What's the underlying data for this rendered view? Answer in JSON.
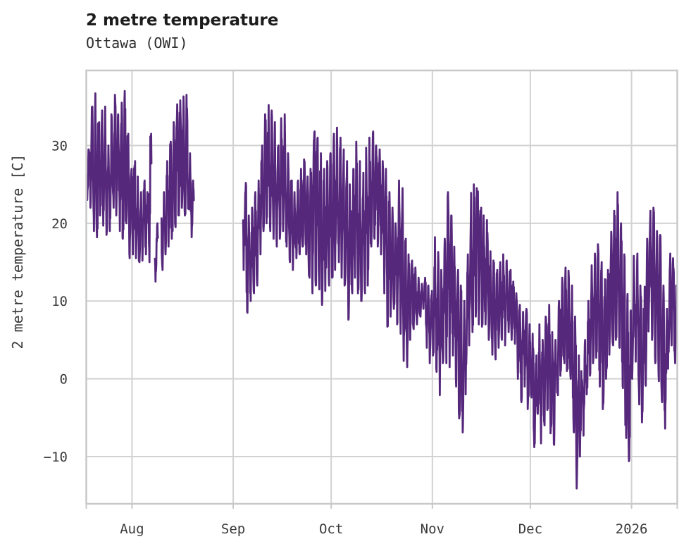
{
  "page": {
    "title": "2 metre temperature",
    "subtitle": "Ottawa (OWI)"
  },
  "chart_data": {
    "type": "line",
    "title": "2 metre temperature",
    "subtitle": "Ottawa (OWI)",
    "xlabel": "",
    "ylabel": "2 metre temperature [C]",
    "grid": true,
    "legend": false,
    "background": "#ffffff",
    "grid_color": "#d2d2d2",
    "border_color": "#c8c8c8",
    "line_color": "#56287c",
    "y_ticks": [
      30,
      20,
      10,
      0,
      -10
    ],
    "y_tick_labels": [
      "30",
      "20",
      "10",
      "0",
      "−10"
    ],
    "ylim": [
      -16.1,
      39.7
    ],
    "x_tick_labels": [
      "Aug",
      "Sep",
      "Oct",
      "Nov",
      "Dec",
      "2026"
    ],
    "x_tick_positions_days": [
      14,
      45,
      75,
      106,
      136,
      167
    ],
    "xlim_days": [
      0,
      181
    ],
    "x_unit": "days from chart start (mid-July) to mid-January 2026",
    "series": [
      {
        "name": "2 metre temperature",
        "unit": "C",
        "sampling": "sub-daily trace; values below are per-day [dayIndex, min, max] read from the plot; missing days are data gaps",
        "daily_min_max": [
          [
            0,
            23,
            29.5
          ],
          [
            1,
            22,
            35
          ],
          [
            2,
            19,
            36.7
          ],
          [
            3,
            18.2,
            33
          ],
          [
            4,
            21,
            34.5
          ],
          [
            5,
            19.7,
            35
          ],
          [
            6,
            18.5,
            30
          ],
          [
            7,
            19,
            34
          ],
          [
            8,
            22,
            36.5
          ],
          [
            9,
            21,
            34
          ],
          [
            10,
            19,
            35.5
          ],
          [
            11,
            18,
            37
          ],
          [
            12,
            20,
            31.5
          ],
          [
            13,
            15.5,
            27
          ],
          [
            14,
            16,
            28
          ],
          [
            15,
            15.5,
            26
          ],
          [
            16,
            15,
            24
          ],
          [
            17,
            15.2,
            25.5
          ],
          [
            18,
            16,
            24
          ],
          [
            19,
            15,
            31.5
          ],
          [
            21,
            12.5,
            20
          ],
          [
            23,
            14,
            24
          ],
          [
            24,
            16,
            28
          ],
          [
            25,
            17,
            30.5
          ],
          [
            26,
            18,
            33
          ],
          [
            27,
            19.5,
            35.3
          ],
          [
            28,
            21,
            35.8
          ],
          [
            29,
            22,
            36.3
          ],
          [
            30,
            21,
            36.5
          ],
          [
            31,
            21.8,
            29
          ],
          [
            32,
            18.2,
            25.5
          ],
          [
            48,
            14,
            25.2
          ],
          [
            49,
            8.5,
            21
          ],
          [
            50,
            10,
            22
          ],
          [
            51,
            11,
            24
          ],
          [
            52,
            12,
            25.5
          ],
          [
            53,
            16,
            30
          ],
          [
            54,
            19,
            34
          ],
          [
            55,
            20,
            35.2
          ],
          [
            56,
            19,
            34.5
          ],
          [
            57,
            18,
            33
          ],
          [
            58,
            17,
            30
          ],
          [
            59,
            18,
            33.5
          ],
          [
            60,
            19,
            34
          ],
          [
            61,
            17,
            29
          ],
          [
            62,
            15,
            25.5
          ],
          [
            63,
            14,
            24
          ],
          [
            64,
            15.5,
            25.5
          ],
          [
            65,
            16,
            27
          ],
          [
            66,
            17,
            28.2
          ],
          [
            67,
            16,
            26
          ],
          [
            68,
            13,
            27
          ],
          [
            69,
            11,
            31.8
          ],
          [
            70,
            12,
            31
          ],
          [
            71,
            11.5,
            29
          ],
          [
            72,
            9.5,
            27
          ],
          [
            73,
            11.3,
            28
          ],
          [
            74,
            12,
            29
          ],
          [
            75,
            13,
            31.5
          ],
          [
            76,
            14,
            32.3
          ],
          [
            77,
            15,
            31
          ],
          [
            78,
            13,
            29.5
          ],
          [
            79,
            12,
            28
          ],
          [
            80,
            7.6,
            25
          ],
          [
            81,
            11,
            27
          ],
          [
            82,
            13,
            30.5
          ],
          [
            83,
            11,
            28
          ],
          [
            84,
            10,
            26.5
          ],
          [
            85,
            11,
            29.7
          ],
          [
            86,
            12,
            31
          ],
          [
            87,
            17,
            31.8
          ],
          [
            88,
            18,
            30
          ],
          [
            89,
            17,
            29.5
          ],
          [
            90,
            16,
            28
          ],
          [
            91,
            11,
            27
          ],
          [
            92,
            6.7,
            24
          ],
          [
            93,
            8,
            22
          ],
          [
            94,
            9,
            20
          ],
          [
            95,
            7,
            25.5
          ],
          [
            96,
            5.8,
            24.5
          ],
          [
            97,
            2.3,
            18
          ],
          [
            98,
            1.5,
            16
          ],
          [
            99,
            5,
            15.2
          ],
          [
            100,
            6.4,
            14.3
          ],
          [
            101,
            7,
            13
          ],
          [
            102,
            8,
            12.2
          ],
          [
            103,
            9,
            13
          ],
          [
            104,
            4,
            12
          ],
          [
            105,
            2,
            11.3
          ],
          [
            106,
            3,
            18.2
          ],
          [
            107,
            0.9,
            16.3
          ],
          [
            108,
            -2.1,
            14
          ],
          [
            109,
            2,
            18
          ],
          [
            110,
            2,
            24
          ],
          [
            111,
            1.5,
            21
          ],
          [
            112,
            3,
            17
          ],
          [
            113,
            -1,
            14
          ],
          [
            114,
            -5.1,
            12
          ],
          [
            115,
            -6.9,
            10
          ],
          [
            116,
            -2,
            16
          ],
          [
            117,
            4.3,
            23.9
          ],
          [
            118,
            6,
            25
          ],
          [
            119,
            8,
            24.5
          ],
          [
            120,
            7,
            22
          ],
          [
            121,
            6.7,
            21
          ],
          [
            122,
            7,
            20.4
          ],
          [
            123,
            5,
            16.4
          ],
          [
            124,
            3.1,
            15.2
          ],
          [
            125,
            2.5,
            14
          ],
          [
            126,
            4,
            15
          ],
          [
            127,
            5,
            16
          ],
          [
            128,
            4.3,
            15.2
          ],
          [
            129,
            6,
            14
          ],
          [
            130,
            5,
            12.5
          ],
          [
            131,
            4.5,
            11
          ],
          [
            132,
            0,
            9.5
          ],
          [
            133,
            -3,
            8.6
          ],
          [
            134,
            -1,
            9
          ],
          [
            135,
            -3.9,
            7
          ],
          [
            136,
            -2.4,
            5.8
          ],
          [
            137,
            -8.8,
            3
          ],
          [
            138,
            -4.5,
            7
          ],
          [
            139,
            -8.3,
            5
          ],
          [
            140,
            -6,
            8
          ],
          [
            141,
            -4,
            9.5
          ],
          [
            142,
            -7,
            6
          ],
          [
            143,
            -8.5,
            5
          ],
          [
            144,
            -2.1,
            10
          ],
          [
            145,
            0.4,
            13
          ],
          [
            146,
            2,
            14.3
          ],
          [
            147,
            1,
            13.9
          ],
          [
            148,
            0,
            12
          ],
          [
            149,
            -6.9,
            8
          ],
          [
            150,
            -14.1,
            3
          ],
          [
            151,
            -10,
            1
          ],
          [
            152,
            -7.3,
            5
          ],
          [
            153,
            -2,
            10
          ],
          [
            154,
            0.4,
            14.6
          ],
          [
            155,
            2,
            16.1
          ],
          [
            156,
            2.7,
            17.3
          ],
          [
            157,
            -1,
            15
          ],
          [
            158,
            -3.9,
            12.8
          ],
          [
            159,
            0,
            14
          ],
          [
            160,
            3.1,
            18.9
          ],
          [
            161,
            4.3,
            21.6
          ],
          [
            162,
            5,
            24
          ],
          [
            163,
            4,
            20
          ],
          [
            164,
            -1.2,
            16
          ],
          [
            165,
            -7.6,
            10.9
          ],
          [
            166,
            -10.6,
            8.8
          ],
          [
            167,
            0,
            15.8
          ],
          [
            168,
            2.2,
            16.1
          ],
          [
            169,
            -3.3,
            12
          ],
          [
            170,
            -5.6,
            9
          ],
          [
            171,
            -0.9,
            18
          ],
          [
            172,
            6.1,
            21.6
          ],
          [
            173,
            5,
            22
          ],
          [
            174,
            2,
            19
          ],
          [
            175,
            -0.3,
            18.5
          ],
          [
            176,
            -3,
            12
          ],
          [
            177,
            -6.4,
            9
          ],
          [
            178,
            1.3,
            16.1
          ],
          [
            179,
            4.3,
            15.5
          ],
          [
            180,
            2,
            12
          ],
          [
            181,
            2,
            9
          ]
        ]
      }
    ]
  }
}
